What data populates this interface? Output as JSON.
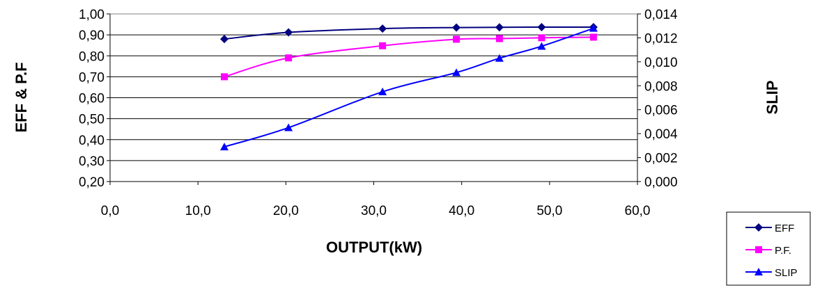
{
  "chart_data": {
    "type": "line",
    "xlabel": "OUTPUT(kW)",
    "ylabel": "EFF & P.F",
    "y2label": "SLIP",
    "xlim": [
      0,
      60
    ],
    "ylim": [
      0.2,
      1.0
    ],
    "y2lim": [
      0,
      0.014
    ],
    "xticks": [
      "0,0",
      "10,0",
      "20,0",
      "30,0",
      "40,0",
      "50,0",
      "60,0"
    ],
    "yticks": [
      "0,20",
      "0,30",
      "0,40",
      "0,50",
      "0,60",
      "0,70",
      "0,80",
      "0,90",
      "1,00"
    ],
    "y2ticks": [
      "0,000",
      "0,002",
      "0,004",
      "0,006",
      "0,008",
      "0,010",
      "0,012",
      "0,014"
    ],
    "grid": "horizontal",
    "legend_position": "bottom-right",
    "series": [
      {
        "name": "EFF",
        "axis": "left",
        "color": "#000080",
        "marker": "diamond",
        "x": [
          13.0,
          20.3,
          31.0,
          39.4,
          44.3,
          49.1,
          55.0
        ],
        "values": [
          0.88,
          0.912,
          0.93,
          0.935,
          0.936,
          0.937,
          0.937
        ]
      },
      {
        "name": "P.F.",
        "axis": "left",
        "color": "#FF00FF",
        "marker": "square",
        "x": [
          13.0,
          20.3,
          31.0,
          39.4,
          44.3,
          49.1,
          55.0
        ],
        "values": [
          0.7,
          0.79,
          0.848,
          0.879,
          0.882,
          0.886,
          0.889
        ]
      },
      {
        "name": "SLIP",
        "axis": "right",
        "color": "#0000FF",
        "marker": "triangle",
        "x": [
          13.0,
          20.3,
          31.0,
          39.4,
          44.3,
          49.1,
          55.0
        ],
        "values": [
          0.0029,
          0.0045,
          0.0075,
          0.0091,
          0.0103,
          0.0113,
          0.0128
        ]
      }
    ]
  }
}
